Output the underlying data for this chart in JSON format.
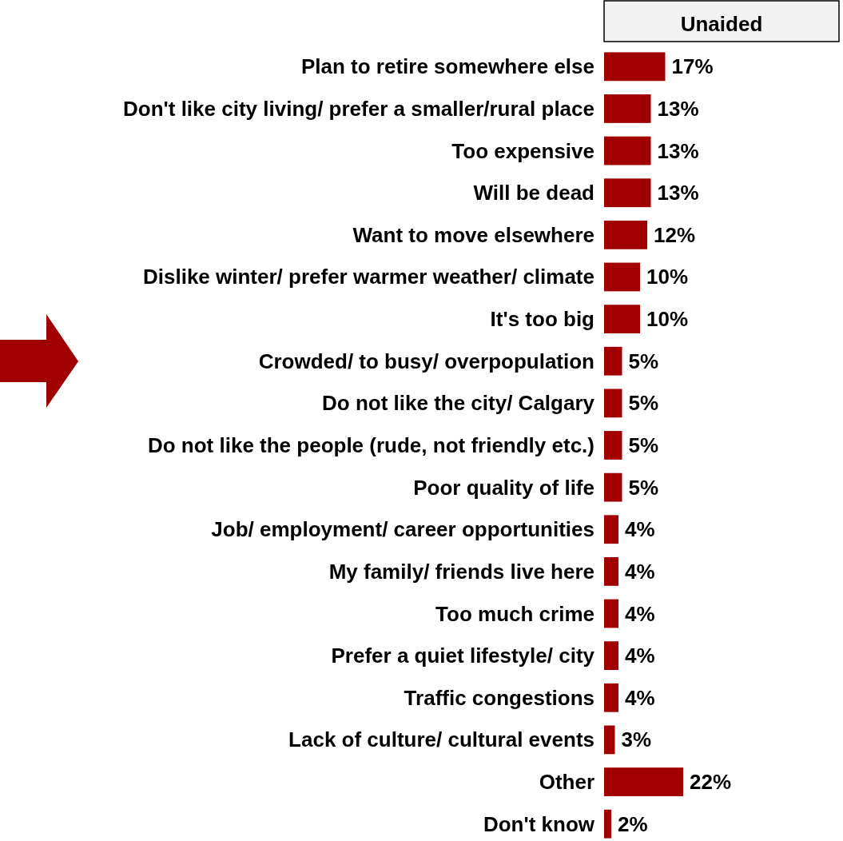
{
  "chart_data": {
    "type": "bar",
    "orientation": "horizontal",
    "title": "Unaided",
    "value_labels": [
      "17%",
      "13%",
      "13%",
      "13%",
      "12%",
      "10%",
      "10%",
      "5%",
      "5%",
      "5%",
      "5%",
      "4%",
      "4%",
      "4%",
      "4%",
      "4%",
      "3%",
      "22%",
      "2%"
    ],
    "color": "#a00000",
    "categories": [
      "Plan to retire somewhere else",
      "Don't like city living/ prefer a smaller/rural place",
      "Too expensive",
      "Will be dead",
      "Want to move elsewhere",
      "Dislike winter/ prefer warmer weather/ climate",
      "It's too big",
      "Crowded/ to busy/ overpopulation",
      "Do not like the city/ Calgary",
      "Do not like the people (rude, not friendly etc.)",
      "Poor quality of life",
      "Job/ employment/ career opportunities",
      "My family/ friends live here",
      "Too much crime",
      "Prefer a quiet lifestyle/ city",
      "Traffic congestions",
      "Lack of culture/ cultural events",
      "Other",
      "Don't know"
    ],
    "values": [
      17,
      13,
      13,
      13,
      12,
      10,
      10,
      5,
      5,
      5,
      5,
      4,
      4,
      4,
      4,
      4,
      3,
      22,
      2
    ]
  }
}
